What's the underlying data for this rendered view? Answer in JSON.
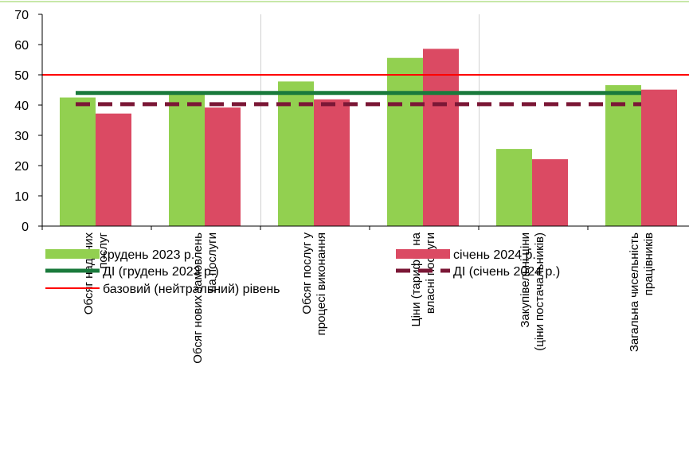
{
  "chart_data": {
    "type": "bar",
    "categories": [
      [
        "Обсяг наданих",
        "послуг"
      ],
      [
        "Обсяг нових замовлень",
        "на послуги"
      ],
      [
        "Обсяг послуг у",
        "процесі виконання"
      ],
      [
        "Ціни (тарифи) на",
        "власні послуги"
      ],
      [
        "Закупівельні ціни",
        "(ціни постачальників)"
      ],
      [
        "Загальна чисельність",
        "працівників"
      ]
    ],
    "series": [
      {
        "name": "грудень 2023 р.",
        "values": [
          42.5,
          43.5,
          47.8,
          55.6,
          25.5,
          46.6
        ],
        "color": "#92d050"
      },
      {
        "name": "січень 2024 р.",
        "values": [
          37.2,
          39.2,
          41.9,
          58.6,
          22.1,
          45.1
        ],
        "color": "#db4a63"
      }
    ],
    "lines": [
      {
        "name": "ДІ (грудень 2023 р.)",
        "value": 44,
        "color": "#1a7a3c",
        "style": "solid"
      },
      {
        "name": "ДІ (січень 2024 р.)",
        "value": 40.3,
        "color": "#7b1736",
        "style": "dashed"
      },
      {
        "name": "базовий (нейтральний) рівень",
        "value": 50,
        "color": "#ff0000",
        "style": "solid"
      }
    ],
    "ylim": [
      0,
      70
    ],
    "yticks": [
      0,
      10,
      20,
      30,
      40,
      50,
      60,
      70
    ],
    "legend_position": "bottom",
    "grid": "vertical separators between category pairs"
  }
}
